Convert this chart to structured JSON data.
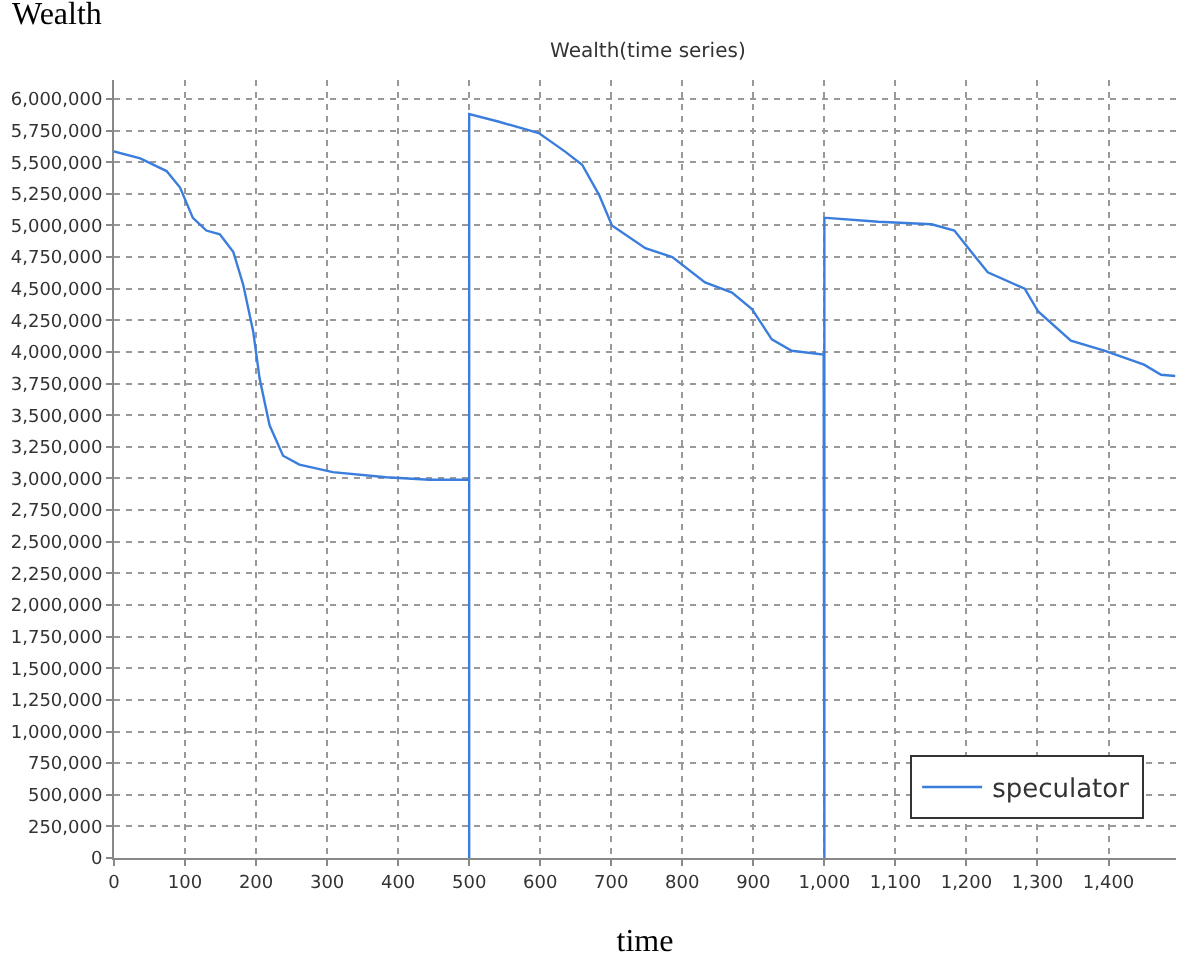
{
  "chart_data": {
    "type": "line",
    "title": "Wealth(time series)",
    "xlabel": "time",
    "ylabel": "Wealth",
    "series": [
      {
        "name": "speculator",
        "color": "#3b7ddd",
        "x": [
          0,
          37,
          74,
          93,
          111,
          130,
          149,
          168,
          182,
          196,
          205,
          219,
          238,
          261,
          308,
          383,
          444,
          500,
          500,
          500,
          542,
          598,
          636,
          659,
          683,
          701,
          748,
          786,
          832,
          870,
          898,
          926,
          954,
          999,
          1000,
          1000,
          1003,
          1076,
          1151,
          1183,
          1207,
          1230,
          1282,
          1301,
          1347,
          1394,
          1450,
          1474,
          1494
        ],
        "values": [
          5585000,
          5530000,
          5430000,
          5300000,
          5060000,
          4960000,
          4930000,
          4790000,
          4530000,
          4160000,
          3790000,
          3420000,
          3180000,
          3110000,
          3050000,
          3010000,
          2990000,
          2990000,
          0,
          5880000,
          5820000,
          5730000,
          5580000,
          5480000,
          5240000,
          5000000,
          4820000,
          4750000,
          4550000,
          4470000,
          4340000,
          4100000,
          4010000,
          3980000,
          0,
          5060000,
          5060000,
          5030000,
          5010000,
          4960000,
          4790000,
          4630000,
          4500000,
          4320000,
          4090000,
          4010000,
          3900000,
          3820000,
          3810000
        ]
      }
    ],
    "xlim": [
      0,
      1495
    ],
    "ylim": [
      0,
      6150000
    ],
    "xticks": [
      0,
      100,
      200,
      300,
      400,
      500,
      600,
      700,
      800,
      900,
      {
        "value": 1000,
        "label": "1,000"
      },
      {
        "value": 1100,
        "label": "1,100"
      },
      {
        "value": 1200,
        "label": "1,200"
      },
      {
        "value": 1300,
        "label": "1,300"
      },
      {
        "value": 1400,
        "label": "1,400"
      }
    ],
    "yticks": [
      0,
      {
        "value": 250000,
        "label": "250,000"
      },
      {
        "value": 500000,
        "label": "500,000"
      },
      {
        "value": 750000,
        "label": "750,000"
      },
      {
        "value": 1000000,
        "label": "1,000,000"
      },
      {
        "value": 1250000,
        "label": "1,250,000"
      },
      {
        "value": 1500000,
        "label": "1,500,000"
      },
      {
        "value": 1750000,
        "label": "1,750,000"
      },
      {
        "value": 2000000,
        "label": "2,000,000"
      },
      {
        "value": 2250000,
        "label": "2,250,000"
      },
      {
        "value": 2500000,
        "label": "2,500,000"
      },
      {
        "value": 2750000,
        "label": "2,750,000"
      },
      {
        "value": 3000000,
        "label": "3,000,000"
      },
      {
        "value": 3250000,
        "label": "3,250,000"
      },
      {
        "value": 3500000,
        "label": "3,500,000"
      },
      {
        "value": 3750000,
        "label": "3,750,000"
      },
      {
        "value": 4000000,
        "label": "4,000,000"
      },
      {
        "value": 4250000,
        "label": "4,250,000"
      },
      {
        "value": 4500000,
        "label": "4,500,000"
      },
      {
        "value": 4750000,
        "label": "4,750,000"
      },
      {
        "value": 5000000,
        "label": "5,000,000"
      },
      {
        "value": 5250000,
        "label": "5,250,000"
      },
      {
        "value": 5500000,
        "label": "5,500,000"
      },
      {
        "value": 5750000,
        "label": "5,750,000"
      },
      {
        "value": 6000000,
        "label": "6,000,000"
      }
    ],
    "grid": true,
    "legend": "bottom right",
    "marker": "none",
    "line_style": "solid"
  }
}
